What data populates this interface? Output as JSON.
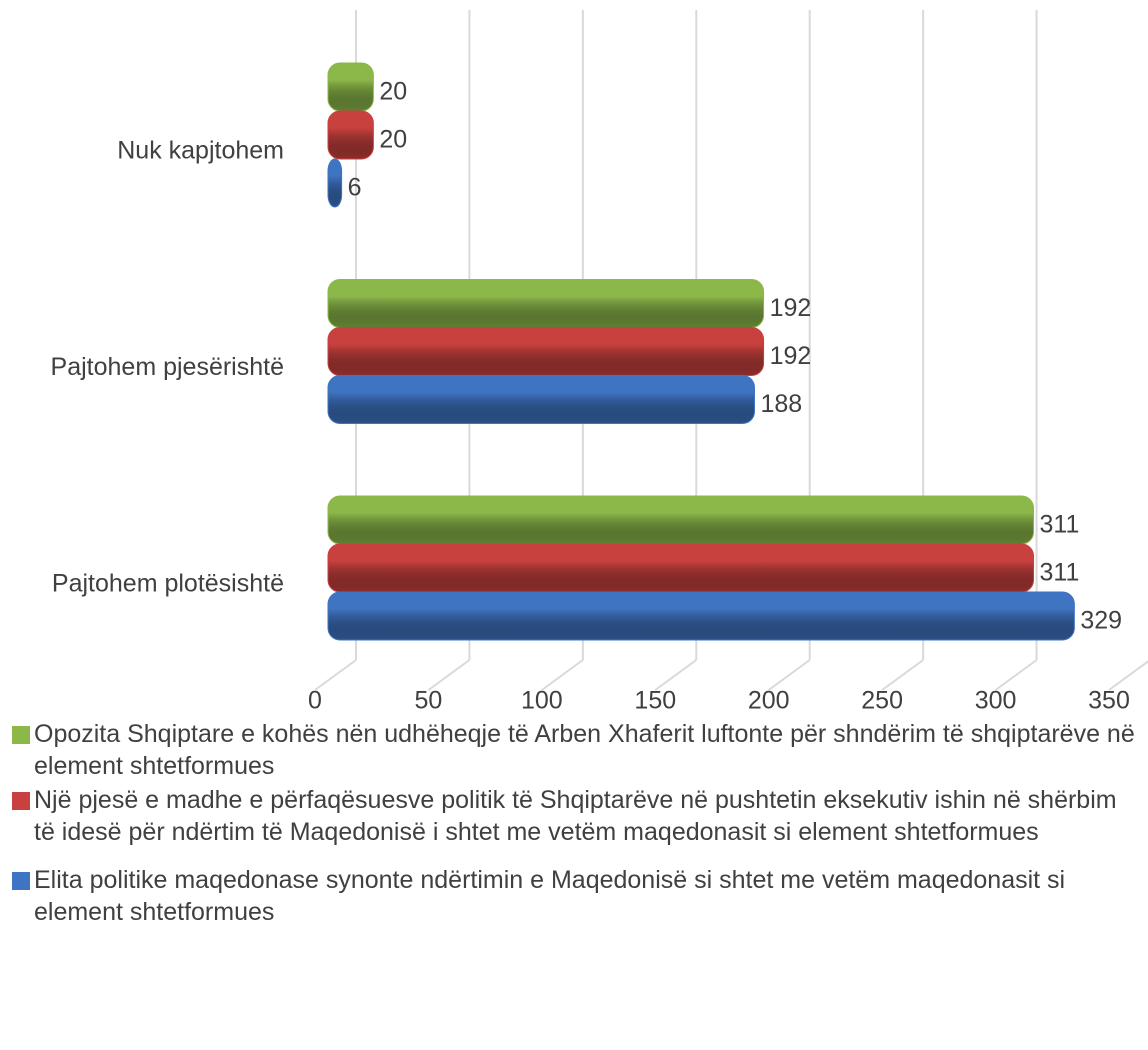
{
  "chart_data": {
    "type": "bar",
    "orientation": "horizontal",
    "categories": [
      "Pajtohem plotësishtë",
      "Pajtohem pjesërishtë",
      "Nuk kapjtohem"
    ],
    "series": [
      {
        "name": "Opozita Shqiptare e kohës nën udhëheqje të Arben Xhaferit luftonte për shndërim të shqiptarëve në element shtetformues",
        "color": "#8cb84a",
        "values": [
          311,
          192,
          20
        ]
      },
      {
        "name": "Një pjesë e madhe e përfaqësuesve politik të Shqiptarëve në pushtetin eksekutiv ishin në shërbim të idesë për ndërtim të Maqedonisë i shtet me vetëm maqedonasit si element shtetformues",
        "color": "#c9413e",
        "values": [
          311,
          192,
          20
        ]
      },
      {
        "name": "Elita politike maqedonase synonte ndërtimin e Maqedonisë si shtet me vetëm maqedonasit si element shtetformues",
        "color": "#3f74c2",
        "values": [
          329,
          188,
          6
        ]
      }
    ],
    "xlim": [
      0,
      350
    ],
    "xticks": [
      0,
      50,
      100,
      150,
      200,
      250,
      300,
      350
    ],
    "grid": true,
    "legend": "bottom"
  }
}
